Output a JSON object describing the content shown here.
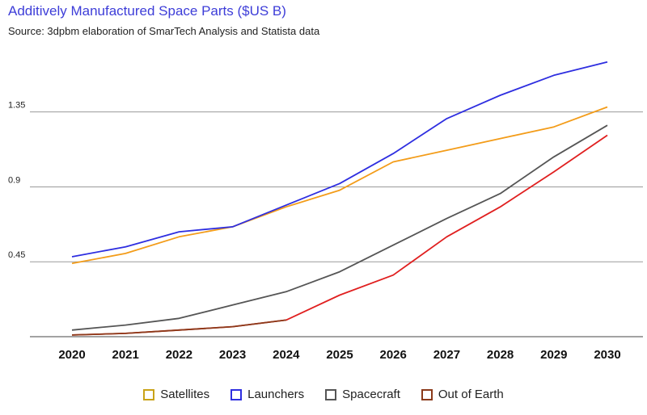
{
  "chart_data": {
    "type": "line",
    "title": "Additively Manufactured Space Parts ($US B)",
    "subtitle": "Source: 3dpbm elaboration of SmarTech Analysis and Statista data",
    "x": [
      "2020",
      "2021",
      "2022",
      "2023",
      "2024",
      "2025",
      "2026",
      "2027",
      "2028",
      "2029",
      "2030"
    ],
    "yticks": [
      "0.45",
      "0.9",
      "1.35"
    ],
    "ylim": [
      0,
      1.78
    ],
    "grid": true,
    "legend_position": "bottom",
    "series": [
      {
        "name": "Satellites",
        "color": "#f39c19",
        "legend_color": "#c9a318",
        "values": [
          0.44,
          0.5,
          0.6,
          0.66,
          0.78,
          0.88,
          1.05,
          1.12,
          1.19,
          1.26,
          1.38
        ]
      },
      {
        "name": "Launchers",
        "color": "#2e2ee0",
        "legend_color": "#2e2ee0",
        "values": [
          0.48,
          0.54,
          0.63,
          0.66,
          0.79,
          0.92,
          1.1,
          1.31,
          1.45,
          1.57,
          1.65
        ]
      },
      {
        "name": "Spacecraft",
        "color": "#555555",
        "legend_color": "#555555",
        "values": [
          0.04,
          0.07,
          0.11,
          0.19,
          0.27,
          0.39,
          0.55,
          0.71,
          0.86,
          1.08,
          1.27
        ]
      },
      {
        "name": "Out of Earth",
        "color": "#e01f1f",
        "legend_color": "#8b3a1a",
        "values": [
          0.01,
          0.02,
          0.04,
          0.06,
          0.1,
          0.25,
          0.37,
          0.6,
          0.78,
          0.99,
          1.21
        ]
      }
    ]
  }
}
